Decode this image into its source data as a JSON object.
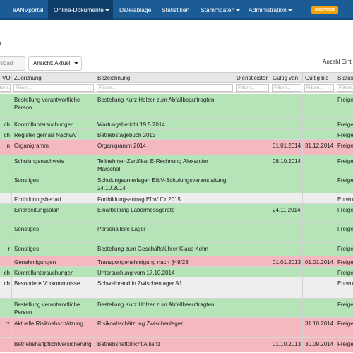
{
  "nav": {
    "items": [
      "eANVportal",
      "Online-Dokumente",
      "Dateiablage",
      "Statistiken",
      "Stammdaten",
      "Administration"
    ],
    "badge": "Testsystem"
  },
  "page_heading": "O",
  "toolbar": {
    "download": "wnload",
    "view": "Ansicht: Aktuell",
    "count": "Anzahl Eint"
  },
  "table": {
    "headers": [
      "VO",
      "Zuordnung",
      "Bezeichnung",
      "Dienstleister",
      "Gültig von",
      "Gültig bis",
      "Status"
    ],
    "filter_placeholder": "Filtern...",
    "rows": [
      {
        "color": "green",
        "c0": "",
        "c1": "Bestellung verantwortliche Person",
        "c2": "Bestellung Kurz Holzer zum Abfallbeauftragten",
        "c3": "",
        "c4": "",
        "c5": "",
        "c6": "Freige"
      },
      {
        "color": "green",
        "c0": "ch",
        "c1": "Kontrolluntersuchungen",
        "c2": "Wartungsbericht 19.5.2014",
        "c3": "",
        "c4": "",
        "c5": "",
        "c6": "Freige"
      },
      {
        "color": "green",
        "c0": "ch",
        "c1": "Register gemäß NachwV",
        "c2": "Betriebstagebuch 2013",
        "c3": "",
        "c4": "",
        "c5": "",
        "c6": "Freige"
      },
      {
        "color": "red",
        "c0": "n",
        "c1": "Organigramm",
        "c2": "Organigramm 2014",
        "c3": "",
        "c4": "01.01.2014",
        "c5": "31.12.2014",
        "c6": "Freige"
      },
      {
        "color": "green",
        "c0": "",
        "c1": "Schulungsnachweis",
        "c2": "Teilnehmer-Zertifikat E-Rechnung Alexander Marschall",
        "c3": "",
        "c4": "08.10.2014",
        "c5": "",
        "c6": "Freige"
      },
      {
        "color": "green",
        "c0": "",
        "c1": "Sonstiges",
        "c2": "Schulungsunterlagen EfbV-Schulungsveranstaltung 24.10.2014",
        "c3": "",
        "c4": "",
        "c5": "",
        "c6": "Freige"
      },
      {
        "color": "white",
        "c0": "",
        "c1": "Fortbildungsbedarf",
        "c2": "Fortbildungsantrag EfbV für 2015",
        "c3": "",
        "c4": "",
        "c5": "",
        "c6": "Entwu"
      },
      {
        "color": "green",
        "c0": "",
        "c1": "Einarbeitungsplan",
        "c2": "Einarbeitung Labormessgeräte",
        "c3": "",
        "c4": "24.11.2014",
        "c5": "",
        "c6": "Freige"
      },
      {
        "color": "green",
        "c0": "",
        "c1": "Sonstiges",
        "c2": "Personalliste Lager",
        "c3": "",
        "c4": "",
        "c5": "",
        "c6": "Freige"
      },
      {
        "color": "green",
        "c0": "r",
        "c1": "Sonstiges",
        "c2": "Bestellung zum Geschäftsführer Klaus Kohn",
        "c3": "",
        "c4": "",
        "c5": "",
        "c6": "Freige"
      },
      {
        "color": "red",
        "c0": "",
        "c1": "Genehmigungen",
        "c2": "Transportgenehmigung nach §49/23",
        "c3": "",
        "c4": "01.01.2013",
        "c5": "01.01.2014",
        "c6": "Freige"
      },
      {
        "color": "green",
        "c0": "ch",
        "c1": "Kontrolluntersuchungen",
        "c2": "Untersuchung vom 17.10.2014",
        "c3": "",
        "c4": "",
        "c5": "",
        "c6": "Freige"
      },
      {
        "color": "white",
        "c0": "ch",
        "c1": "Besondere Vorkommnisse",
        "c2": "Schwelbrand in Zwischenlager A1",
        "c3": "",
        "c4": "",
        "c5": "",
        "c6": "Entwu"
      },
      {
        "color": "green",
        "c0": "",
        "c1": "Bestellung verantwortliche Person",
        "c2": "Bestellung Kurz Holzer zum Abfallbeauftragten",
        "c3": "",
        "c4": "",
        "c5": "",
        "c6": "Freige"
      },
      {
        "color": "red",
        "c0": "tz",
        "c1": "Aktuelle Risikoabschätzung",
        "c2": "Risikoabschätzung Zwischenlager",
        "c3": "",
        "c4": "",
        "c5": "31.10.2014",
        "c6": "Freige"
      },
      {
        "color": "red",
        "c0": "",
        "c1": "Betriebshaftpflichtversicherung",
        "c2": "Betriebshaftpflicht Allianz",
        "c3": "",
        "c4": "01.10.2013",
        "c5": "30.09.2014",
        "c6": "Freige"
      }
    ]
  }
}
